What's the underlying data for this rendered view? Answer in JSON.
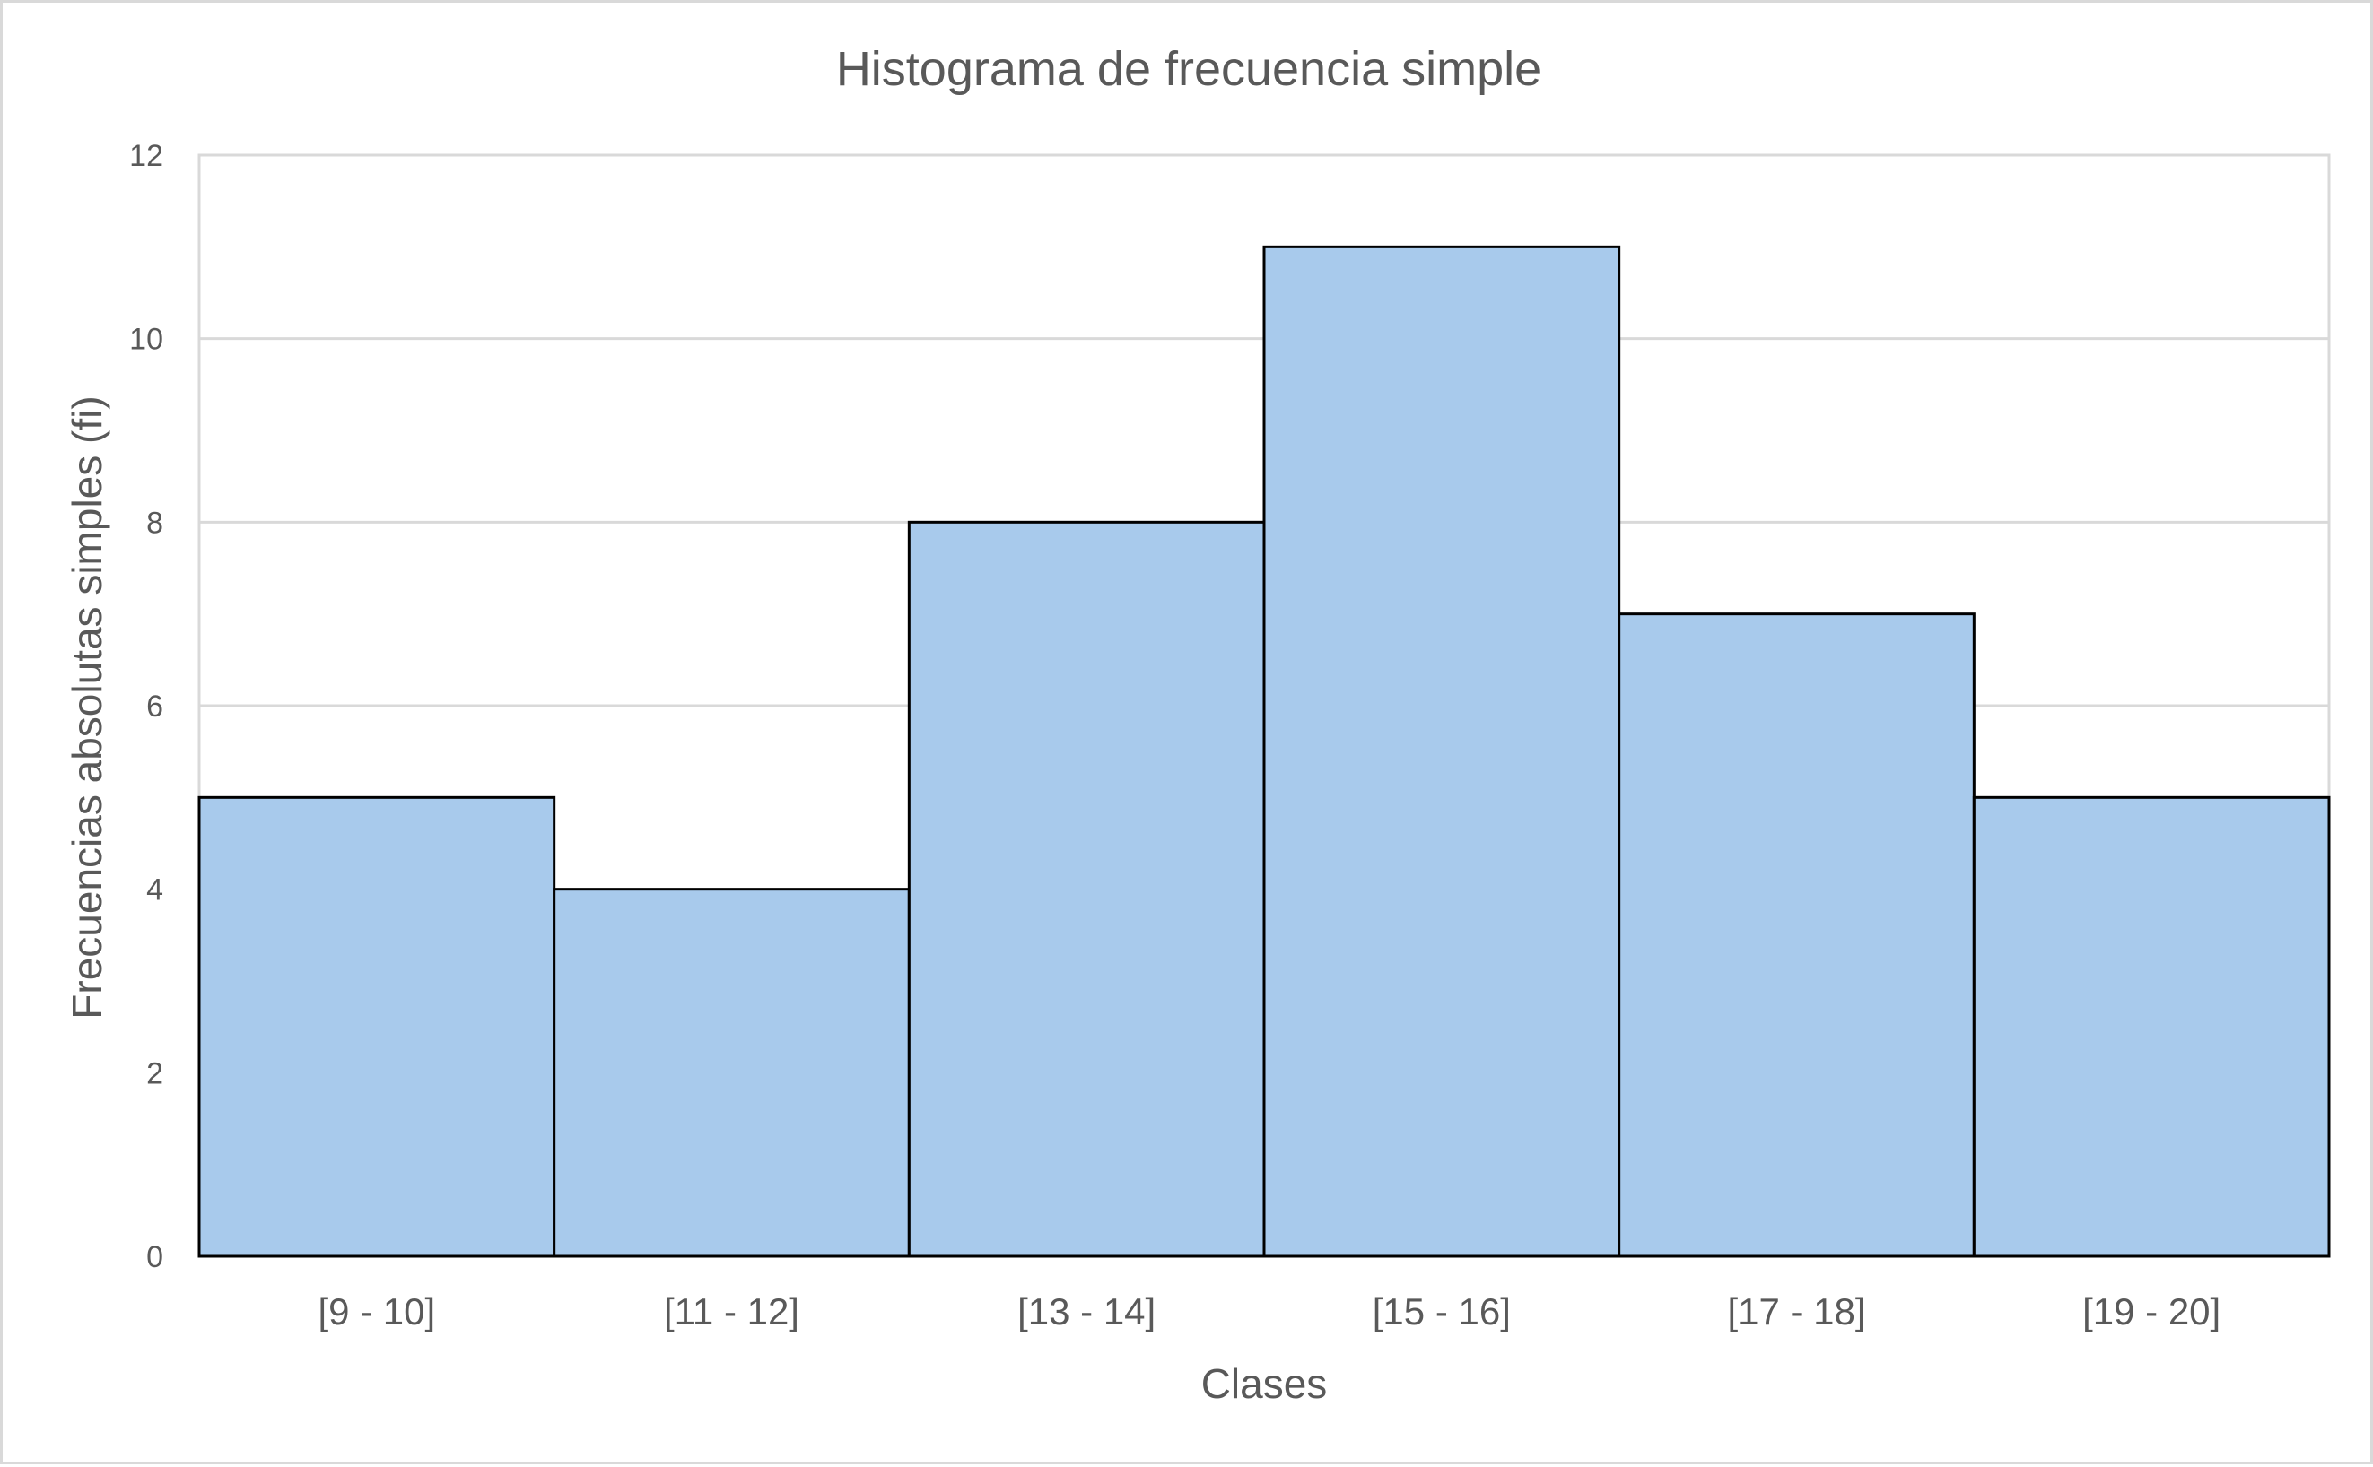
{
  "chart_data": {
    "type": "bar",
    "title": "Histograma de frecuencia simple",
    "xlabel": "Clases",
    "ylabel": "Frecuencias absolutas simples (fi)",
    "categories": [
      "[9 - 10]",
      "[11 - 12]",
      "[13 - 14]",
      "[15 - 16]",
      "[17 - 18]",
      "[19 - 20]"
    ],
    "values": [
      5,
      4,
      8,
      11,
      7,
      5
    ],
    "ylim": [
      0,
      12
    ],
    "yticks": [
      0,
      2,
      4,
      6,
      8,
      10,
      12
    ],
    "grid": true,
    "legend": "none",
    "bar_gap": 0,
    "colors": {
      "bar_fill": "#a8caec",
      "bar_stroke": "#000000",
      "grid": "#d9d9d9",
      "text": "#595959"
    }
  }
}
